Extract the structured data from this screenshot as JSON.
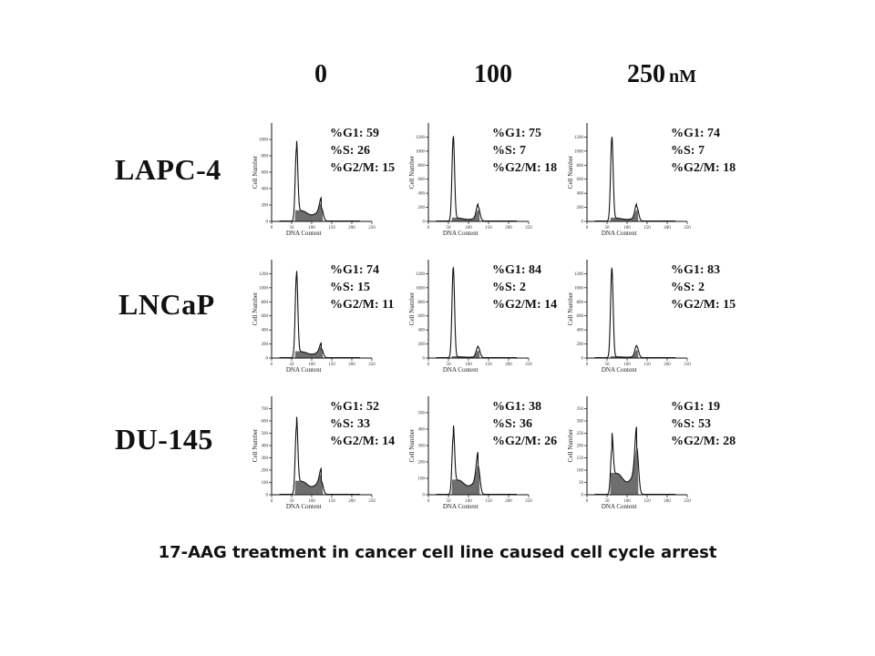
{
  "concentrations": [
    {
      "value": "0",
      "unit": ""
    },
    {
      "value": "100",
      "unit": ""
    },
    {
      "value": "250",
      "unit": "nM"
    }
  ],
  "cell_lines": [
    "LAPC-4",
    "LNCaP",
    "DU-145"
  ],
  "caption": "17-AAG treatment in cancer cell line caused cell cycle arrest",
  "chart_data": {
    "type": "area",
    "xlabel": "DNA Content",
    "ylabel": "Cell Number",
    "xlim": [
      0,
      250
    ],
    "panels": [
      {
        "cell_line": "LAPC-4",
        "concentration": "0",
        "stats": [
          "%G1: 59",
          "%S: 26",
          "%G2/M: 15"
        ],
        "g1": 59,
        "s": 26,
        "g2m": 15,
        "ymax": 1200,
        "yticks": [
          0,
          200,
          400,
          600,
          800,
          1000
        ],
        "xticks": [
          0,
          50,
          100,
          150,
          200,
          250
        ]
      },
      {
        "cell_line": "LAPC-4",
        "concentration": "100",
        "stats": [
          "%G1: 75",
          "%S: 7",
          "%G2/M: 18"
        ],
        "g1": 75,
        "s": 7,
        "g2m": 18,
        "ymax": 1400,
        "yticks": [
          0,
          200,
          400,
          600,
          800,
          1000,
          1200
        ],
        "xticks": [
          0,
          50,
          100,
          150,
          200,
          250
        ]
      },
      {
        "cell_line": "LAPC-4",
        "concentration": "250",
        "stats": [
          "%G1: 74",
          "%S: 7",
          "%G2/M: 18"
        ],
        "g1": 74,
        "s": 7,
        "g2m": 18,
        "ymax": 1400,
        "yticks": [
          0,
          200,
          400,
          600,
          800,
          1000,
          1200
        ],
        "xticks": [
          0,
          50,
          100,
          150,
          200,
          250
        ]
      },
      {
        "cell_line": "LNCaP",
        "concentration": "0",
        "stats": [
          "%G1: 74",
          "%S: 15",
          "%G2/M: 11"
        ],
        "g1": 74,
        "s": 15,
        "g2m": 11,
        "ymax": 1400,
        "yticks": [
          0,
          200,
          400,
          600,
          800,
          1000,
          1200
        ],
        "xticks": [
          0,
          50,
          100,
          150,
          200,
          250
        ]
      },
      {
        "cell_line": "LNCaP",
        "concentration": "100",
        "stats": [
          "%G1: 84",
          "%S: 2",
          "%G2/M: 14"
        ],
        "g1": 84,
        "s": 2,
        "g2m": 14,
        "ymax": 1400,
        "yticks": [
          0,
          200,
          400,
          600,
          800,
          1000,
          1200
        ],
        "xticks": [
          0,
          50,
          100,
          150,
          200,
          250
        ]
      },
      {
        "cell_line": "LNCaP",
        "concentration": "250",
        "stats": [
          "%G1: 83",
          "%S: 2",
          "%G2/M: 15"
        ],
        "g1": 83,
        "s": 2,
        "g2m": 15,
        "ymax": 1400,
        "yticks": [
          0,
          200,
          400,
          600,
          800,
          1000,
          1200
        ],
        "xticks": [
          0,
          50,
          100,
          150,
          200,
          250
        ]
      },
      {
        "cell_line": "DU-145",
        "concentration": "0",
        "stats": [
          "%G1: 52",
          "%S: 33",
          "%G2/M: 14"
        ],
        "g1": 52,
        "s": 33,
        "g2m": 14,
        "ymax": 800,
        "yticks": [
          0,
          100,
          200,
          300,
          400,
          500,
          600,
          700
        ],
        "xticks": [
          0,
          50,
          100,
          150,
          200,
          250
        ]
      },
      {
        "cell_line": "DU-145",
        "concentration": "100",
        "stats": [
          "%G1: 38",
          "%S: 36",
          "%G2/M: 26"
        ],
        "g1": 38,
        "s": 36,
        "g2m": 26,
        "ymax": 600,
        "yticks": [
          0,
          100,
          200,
          300,
          400,
          500
        ],
        "xticks": [
          0,
          50,
          100,
          150,
          200,
          250
        ]
      },
      {
        "cell_line": "DU-145",
        "concentration": "250",
        "stats": [
          "%G1: 19",
          "%S: 53",
          "%G2/M: 28"
        ],
        "g1": 19,
        "s": 53,
        "g2m": 28,
        "ymax": 400,
        "yticks": [
          0,
          50,
          100,
          150,
          200,
          250,
          300,
          350
        ],
        "xticks": [
          0,
          50,
          100,
          150,
          200,
          250
        ]
      }
    ]
  }
}
